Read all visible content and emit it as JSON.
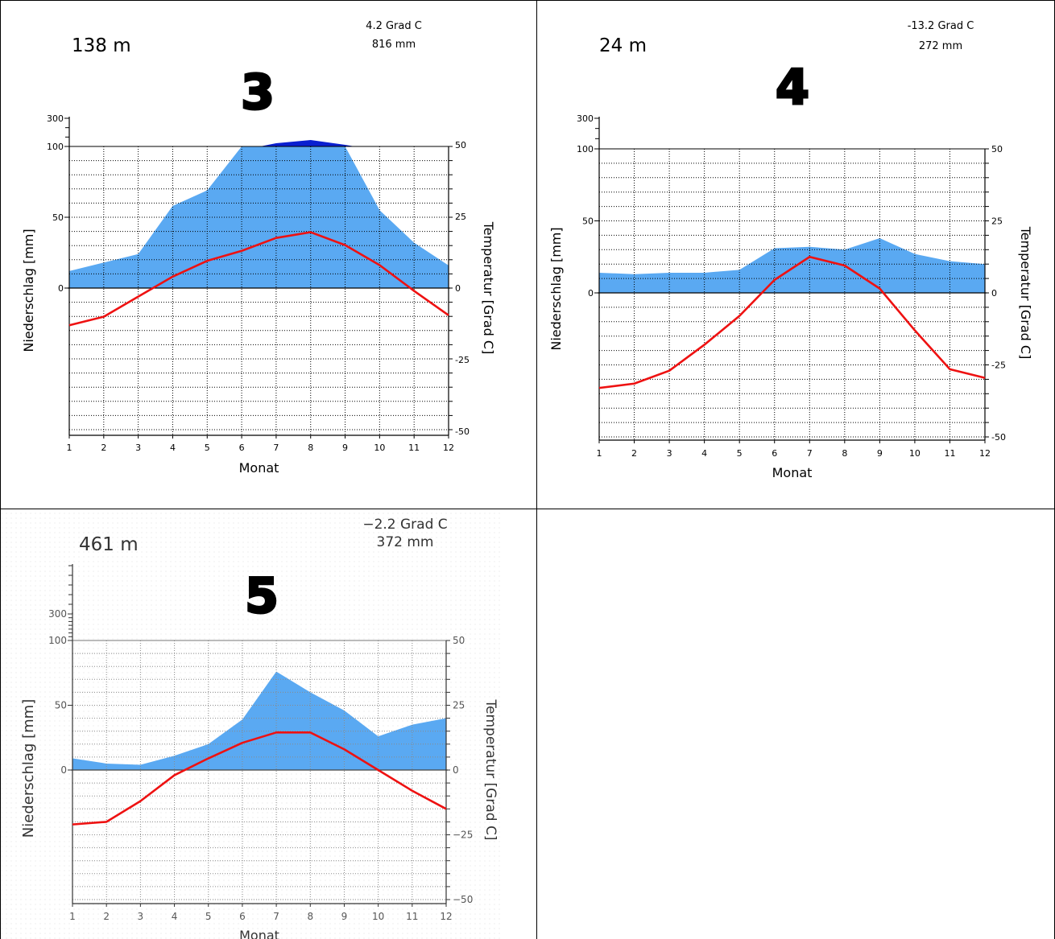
{
  "chart_data": [
    {
      "type": "area",
      "label": "3",
      "elevation": "138  m",
      "annual_temp": "4.2 Grad C",
      "annual_precip": "816 mm",
      "xlabel": "Monat",
      "ylabel_left": "Niederschlag [mm]",
      "ylabel_right": "Temperatur [Grad C]",
      "x": [
        1,
        2,
        3,
        4,
        5,
        6,
        7,
        8,
        9,
        10,
        11,
        12
      ],
      "precip_ticks": [
        "300",
        "100",
        "50",
        "0"
      ],
      "temp_ticks": [
        "50",
        "25",
        "0",
        "-25",
        "-50"
      ],
      "precip_ylim": [
        0,
        100
      ],
      "temp_ylim": [
        -50,
        50
      ],
      "series": [
        {
          "name": "Niederschlag",
          "values": [
            12,
            18,
            24,
            58,
            69,
            100,
            108,
            116,
            104,
            55,
            32,
            16
          ],
          "unit": "mm"
        },
        {
          "name": "Temperatur",
          "values": [
            -13,
            -10,
            -3,
            4,
            9.5,
            13,
            17.5,
            19.5,
            15,
            8,
            -1,
            -9.5
          ],
          "unit": "Grad C"
        }
      ],
      "colors": {
        "precip": "#5aa9f2",
        "precip_above_100": "#0a1fd0",
        "temp": "#ee1111"
      }
    },
    {
      "type": "area",
      "label": "4",
      "elevation": "24  m",
      "annual_temp": "-13.2 Grad C",
      "annual_precip": "272 mm",
      "xlabel": "Monat",
      "ylabel_left": "Niederschlag [mm]",
      "ylabel_right": "Temperatur [Grad C]",
      "x": [
        1,
        2,
        3,
        4,
        5,
        6,
        7,
        8,
        9,
        10,
        11,
        12
      ],
      "precip_ticks": [
        "300",
        "100",
        "50",
        "0"
      ],
      "temp_ticks": [
        "50",
        "25",
        "0",
        "-25",
        "-50"
      ],
      "precip_ylim": [
        0,
        100
      ],
      "temp_ylim": [
        -50,
        50
      ],
      "series": [
        {
          "name": "Niederschlag",
          "values": [
            14,
            13,
            14,
            14,
            16,
            31,
            32,
            30,
            38,
            27,
            22,
            20
          ],
          "unit": "mm"
        },
        {
          "name": "Temperatur",
          "values": [
            -33,
            -31.5,
            -27,
            -18,
            -8,
            4.5,
            12.5,
            9.5,
            1.5,
            -13,
            -26.5,
            -29.5
          ],
          "unit": "Grad C"
        }
      ],
      "colors": {
        "precip": "#5aa9f2",
        "temp": "#ee1111"
      }
    },
    {
      "type": "area",
      "label": "5",
      "elevation": "461  m",
      "annual_temp": "−2.2  Grad  C",
      "annual_precip": "372  mm",
      "xlabel": "Monat",
      "ylabel_left": "Niederschlag [mm]",
      "ylabel_right": "Temperatur [Grad C]",
      "x": [
        1,
        2,
        3,
        4,
        5,
        6,
        7,
        8,
        9,
        10,
        11,
        12
      ],
      "precip_ticks": [
        "300",
        "100",
        "50",
        "0"
      ],
      "temp_ticks": [
        "50",
        "25",
        "0",
        "−25",
        "−50"
      ],
      "precip_ylim": [
        0,
        100
      ],
      "temp_ylim": [
        -50,
        50
      ],
      "series": [
        {
          "name": "Niederschlag",
          "values": [
            9,
            5,
            4,
            11,
            20,
            39,
            76,
            60,
            46,
            26,
            35,
            40
          ],
          "unit": "mm"
        },
        {
          "name": "Temperatur",
          "values": [
            -21,
            -20,
            -12,
            -2,
            4.5,
            10.5,
            14.5,
            14.5,
            8,
            0,
            -8,
            -15
          ],
          "unit": "Grad C"
        }
      ],
      "colors": {
        "precip": "#5aa9f2",
        "temp": "#ee1111"
      }
    }
  ]
}
